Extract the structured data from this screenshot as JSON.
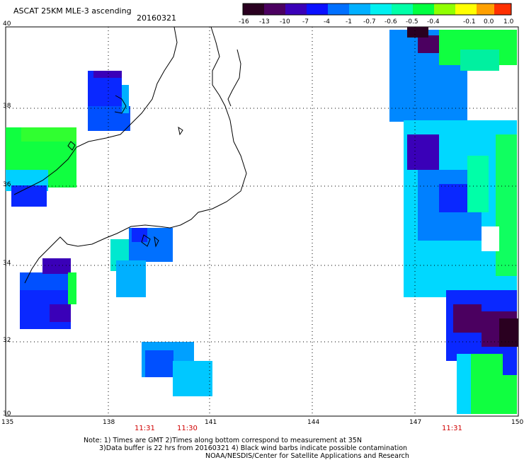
{
  "header": {
    "title": "ASCAT 25KM MLE-3 ascending",
    "date": "20160321"
  },
  "colorbar": {
    "labels": [
      "-16",
      "-13",
      "-10",
      "-7",
      "-4",
      "-1",
      "-0.7",
      "-0.6",
      "-0.5",
      "-0.4",
      "-0.1",
      "0.0",
      "1.0"
    ],
    "colors": [
      "#2a0020",
      "#4b0060",
      "#3a00b8",
      "#0a10ff",
      "#0070ff",
      "#00b0ff",
      "#00f0f0",
      "#00ffa8",
      "#00ff40",
      "#90ff00",
      "#ffff00",
      "#ffa000",
      "#ff3000"
    ]
  },
  "axes": {
    "lat_labels": [
      "40",
      "38",
      "36",
      "34",
      "32",
      "30"
    ],
    "lon_labels": [
      "135",
      "138",
      "141",
      "144",
      "147",
      "150"
    ]
  },
  "times": [
    "11:31",
    "11:30",
    "11:31"
  ],
  "notes": [
    "Note: 1) Times are GMT 2)Times along bottom correspond to measurement at 35N",
    "3)Data buffer is 22 hrs from 20160321 4) Black wind barbs indicate possible contamination",
    "NOAA/NESDIS/Center for Satellite Applications and Research"
  ]
}
